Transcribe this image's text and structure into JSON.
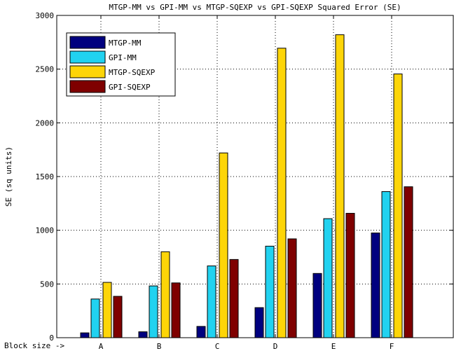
{
  "chart_data": {
    "type": "bar",
    "title": "MTGP-MM vs GPI-MM vs MTGP-SQEXP vs GPI-SQEXP Squared Error (SE)",
    "ylabel": "SE (sq units)",
    "xlabel": "",
    "xprefix": "Block size ->",
    "categories": [
      "A",
      "B",
      "C",
      "D",
      "E",
      "F"
    ],
    "ylim": [
      0,
      3000
    ],
    "yticks": [
      0,
      500,
      1000,
      1500,
      2000,
      2500,
      3000
    ],
    "grid": true,
    "legend_position": "top-left",
    "series": [
      {
        "name": "MTGP-MM",
        "color": "#00007f",
        "values": [
          45,
          55,
          105,
          280,
          598,
          975
        ]
      },
      {
        "name": "GPI-MM",
        "color": "#21d2f0",
        "values": [
          360,
          482,
          668,
          852,
          1108,
          1360
        ]
      },
      {
        "name": "MTGP-SQEXP",
        "color": "#fdd508",
        "values": [
          515,
          800,
          1720,
          2695,
          2820,
          2455
        ]
      },
      {
        "name": "GPI-SQEXP",
        "color": "#7f0000",
        "values": [
          385,
          510,
          728,
          920,
          1158,
          1405
        ]
      }
    ]
  }
}
